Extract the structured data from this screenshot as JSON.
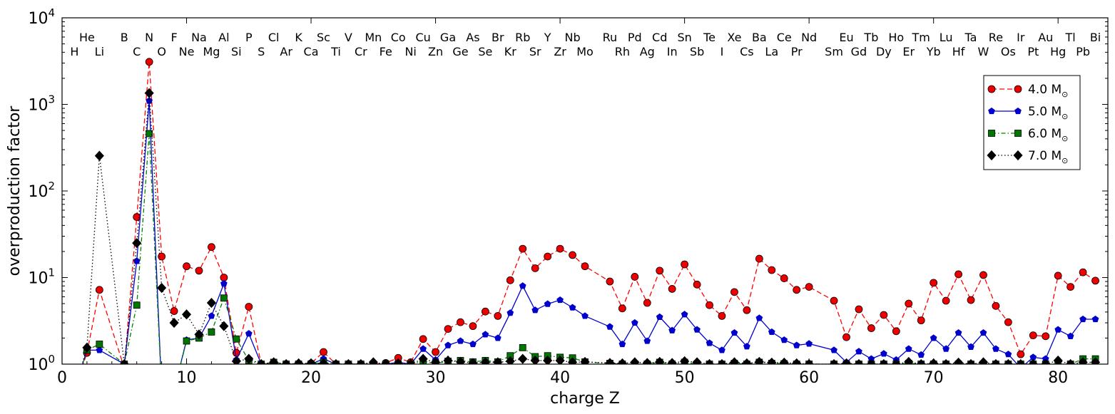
{
  "chart_data": {
    "type": "line",
    "xlabel": "charge Z",
    "ylabel": "overproduction factor",
    "xlim": [
      0,
      84
    ],
    "ylim": [
      1,
      10000
    ],
    "yscale": "log",
    "x_ticks": [
      0,
      10,
      20,
      30,
      40,
      50,
      60,
      70,
      80
    ],
    "y_ticks": [
      {
        "value": 1,
        "base": "10",
        "exp": "0"
      },
      {
        "value": 10,
        "base": "10",
        "exp": "1"
      },
      {
        "value": 100,
        "base": "10",
        "exp": "2"
      },
      {
        "value": 1000,
        "base": "10",
        "exp": "3"
      },
      {
        "value": 10000,
        "base": "10",
        "exp": "4"
      }
    ],
    "grid": false,
    "legend_position": "top-right",
    "element_labels": [
      {
        "z": 1,
        "s": "H"
      },
      {
        "z": 2,
        "s": "He"
      },
      {
        "z": 3,
        "s": "Li"
      },
      {
        "z": 5,
        "s": "B"
      },
      {
        "z": 6,
        "s": "C"
      },
      {
        "z": 7,
        "s": "N"
      },
      {
        "z": 8,
        "s": "O"
      },
      {
        "z": 9,
        "s": "F"
      },
      {
        "z": 10,
        "s": "Ne"
      },
      {
        "z": 11,
        "s": "Na"
      },
      {
        "z": 12,
        "s": "Mg"
      },
      {
        "z": 13,
        "s": "Al"
      },
      {
        "z": 14,
        "s": "Si"
      },
      {
        "z": 15,
        "s": "P"
      },
      {
        "z": 16,
        "s": "S"
      },
      {
        "z": 17,
        "s": "Cl"
      },
      {
        "z": 18,
        "s": "Ar"
      },
      {
        "z": 19,
        "s": "K"
      },
      {
        "z": 20,
        "s": "Ca"
      },
      {
        "z": 21,
        "s": "Sc"
      },
      {
        "z": 22,
        "s": "Ti"
      },
      {
        "z": 23,
        "s": "V"
      },
      {
        "z": 24,
        "s": "Cr"
      },
      {
        "z": 25,
        "s": "Mn"
      },
      {
        "z": 26,
        "s": "Fe"
      },
      {
        "z": 27,
        "s": "Co"
      },
      {
        "z": 28,
        "s": "Ni"
      },
      {
        "z": 29,
        "s": "Cu"
      },
      {
        "z": 30,
        "s": "Zn"
      },
      {
        "z": 31,
        "s": "Ga"
      },
      {
        "z": 32,
        "s": "Ge"
      },
      {
        "z": 33,
        "s": "As"
      },
      {
        "z": 34,
        "s": "Se"
      },
      {
        "z": 35,
        "s": "Br"
      },
      {
        "z": 36,
        "s": "Kr"
      },
      {
        "z": 37,
        "s": "Rb"
      },
      {
        "z": 38,
        "s": "Sr"
      },
      {
        "z": 39,
        "s": "Y"
      },
      {
        "z": 40,
        "s": "Zr"
      },
      {
        "z": 41,
        "s": "Nb"
      },
      {
        "z": 42,
        "s": "Mo"
      },
      {
        "z": 44,
        "s": "Ru"
      },
      {
        "z": 45,
        "s": "Rh"
      },
      {
        "z": 46,
        "s": "Pd"
      },
      {
        "z": 47,
        "s": "Ag"
      },
      {
        "z": 48,
        "s": "Cd"
      },
      {
        "z": 49,
        "s": "In"
      },
      {
        "z": 50,
        "s": "Sn"
      },
      {
        "z": 51,
        "s": "Sb"
      },
      {
        "z": 52,
        "s": "Te"
      },
      {
        "z": 53,
        "s": "I"
      },
      {
        "z": 54,
        "s": "Xe"
      },
      {
        "z": 55,
        "s": "Cs"
      },
      {
        "z": 56,
        "s": "Ba"
      },
      {
        "z": 57,
        "s": "La"
      },
      {
        "z": 58,
        "s": "Ce"
      },
      {
        "z": 59,
        "s": "Pr"
      },
      {
        "z": 60,
        "s": "Nd"
      },
      {
        "z": 62,
        "s": "Sm"
      },
      {
        "z": 63,
        "s": "Eu"
      },
      {
        "z": 64,
        "s": "Gd"
      },
      {
        "z": 65,
        "s": "Tb"
      },
      {
        "z": 66,
        "s": "Dy"
      },
      {
        "z": 67,
        "s": "Ho"
      },
      {
        "z": 68,
        "s": "Er"
      },
      {
        "z": 69,
        "s": "Tm"
      },
      {
        "z": 70,
        "s": "Yb"
      },
      {
        "z": 71,
        "s": "Lu"
      },
      {
        "z": 72,
        "s": "Hf"
      },
      {
        "z": 73,
        "s": "Ta"
      },
      {
        "z": 74,
        "s": "W"
      },
      {
        "z": 75,
        "s": "Re"
      },
      {
        "z": 76,
        "s": "Os"
      },
      {
        "z": 77,
        "s": "Ir"
      },
      {
        "z": 78,
        "s": "Pt"
      },
      {
        "z": 79,
        "s": "Au"
      },
      {
        "z": 80,
        "s": "Hg"
      },
      {
        "z": 81,
        "s": "Tl"
      },
      {
        "z": 82,
        "s": "Pb"
      },
      {
        "z": 83,
        "s": "Bi"
      }
    ],
    "series": [
      {
        "name": "4.0 M",
        "name_sub": "⊙",
        "color": "#ff0000",
        "marker": "circle",
        "marker_color": "#ee0000",
        "line_style": "dashed",
        "x": [
          1,
          2,
          3,
          5,
          6,
          7,
          8,
          9,
          10,
          11,
          12,
          13,
          14,
          15,
          16,
          17,
          18,
          19,
          20,
          21,
          22,
          23,
          24,
          25,
          26,
          27,
          28,
          29,
          30,
          31,
          32,
          33,
          34,
          35,
          36,
          37,
          38,
          39,
          40,
          41,
          42,
          44,
          45,
          46,
          47,
          48,
          49,
          50,
          51,
          52,
          53,
          54,
          55,
          56,
          57,
          58,
          59,
          60,
          62,
          63,
          64,
          65,
          66,
          67,
          68,
          69,
          70,
          71,
          72,
          73,
          74,
          75,
          76,
          77,
          78,
          79,
          80,
          81,
          82,
          83
        ],
        "y": [
          0.5,
          1.35,
          7.2,
          0.9,
          50,
          3100,
          17.5,
          4.1,
          13.5,
          12,
          22.5,
          10,
          1.35,
          4.6,
          1.0,
          1.02,
          1.0,
          1.01,
          1.02,
          1.38,
          1.0,
          1.0,
          1.0,
          1.0,
          1.03,
          1.18,
          1.05,
          1.95,
          1.38,
          2.55,
          3.05,
          2.75,
          4.05,
          3.6,
          9.3,
          21.5,
          12.8,
          17.5,
          21.5,
          18.2,
          13.5,
          9.0,
          4.4,
          10.2,
          5.1,
          12.0,
          7.4,
          14.2,
          8.3,
          4.8,
          3.6,
          6.8,
          4.2,
          16.5,
          12.2,
          9.8,
          7.2,
          7.8,
          5.4,
          2.05,
          4.3,
          2.6,
          3.7,
          2.4,
          5.0,
          3.2,
          8.7,
          5.4,
          10.9,
          5.5,
          10.7,
          4.7,
          3.05,
          1.3,
          2.15,
          2.1,
          10.5,
          7.8,
          11.5,
          9.2
        ]
      },
      {
        "name": "5.0 M",
        "name_sub": "⊙",
        "color": "#0000cc",
        "marker": "pentagon",
        "marker_color": "#0000cc",
        "line_style": "solid",
        "x": [
          1,
          2,
          3,
          5,
          6,
          7,
          8,
          9,
          10,
          11,
          12,
          13,
          14,
          15,
          16,
          17,
          18,
          19,
          20,
          21,
          22,
          23,
          24,
          25,
          26,
          27,
          28,
          29,
          30,
          31,
          32,
          33,
          34,
          35,
          36,
          37,
          38,
          39,
          40,
          41,
          42,
          44,
          45,
          46,
          47,
          48,
          49,
          50,
          51,
          52,
          53,
          54,
          55,
          56,
          57,
          58,
          59,
          60,
          62,
          63,
          64,
          65,
          66,
          67,
          68,
          69,
          70,
          71,
          72,
          73,
          74,
          75,
          76,
          77,
          78,
          79,
          80,
          81,
          82,
          83
        ],
        "y": [
          0.5,
          1.45,
          1.45,
          1.0,
          15.5,
          1100,
          0.5,
          0.5,
          1.9,
          2.0,
          3.6,
          8.5,
          1.12,
          2.25,
          1.0,
          1.0,
          1.0,
          1.0,
          1.0,
          1.15,
          1.0,
          1.0,
          1.0,
          1.0,
          1.0,
          1.05,
          1.0,
          1.5,
          1.12,
          1.65,
          1.85,
          1.7,
          2.2,
          2.0,
          3.9,
          8.0,
          4.2,
          4.95,
          5.5,
          4.5,
          3.6,
          2.7,
          1.7,
          3.0,
          1.85,
          3.5,
          2.45,
          3.75,
          2.5,
          1.75,
          1.45,
          2.3,
          1.6,
          3.4,
          2.35,
          1.9,
          1.65,
          1.72,
          1.45,
          1.05,
          1.4,
          1.15,
          1.32,
          1.12,
          1.5,
          1.28,
          2.0,
          1.5,
          2.3,
          1.58,
          2.3,
          1.5,
          1.3,
          0.9,
          1.2,
          1.15,
          2.5,
          2.1,
          3.3,
          3.3
        ]
      },
      {
        "name": "6.0 M",
        "name_sub": "⊙",
        "color": "#008000",
        "marker": "square",
        "marker_color": "#007700",
        "line_style": "dashdot",
        "x": [
          1,
          2,
          3,
          5,
          6,
          7,
          8,
          9,
          10,
          11,
          12,
          13,
          14,
          15,
          16,
          17,
          18,
          19,
          20,
          21,
          22,
          23,
          24,
          25,
          26,
          27,
          28,
          29,
          30,
          31,
          32,
          33,
          34,
          35,
          36,
          37,
          38,
          39,
          40,
          41,
          42,
          44,
          45,
          46,
          47,
          48,
          49,
          50,
          51,
          52,
          53,
          54,
          55,
          56,
          57,
          58,
          59,
          60,
          62,
          63,
          64,
          65,
          66,
          67,
          68,
          69,
          70,
          71,
          72,
          73,
          74,
          75,
          76,
          77,
          78,
          79,
          80,
          81,
          82,
          83
        ],
        "y": [
          0.5,
          1.45,
          1.7,
          1.0,
          4.8,
          460,
          0.5,
          0.5,
          1.85,
          2.0,
          2.35,
          5.8,
          1.95,
          1.1,
          1.0,
          1.05,
          1.0,
          1.0,
          1.0,
          1.05,
          1.0,
          1.0,
          1.0,
          1.0,
          1.0,
          1.0,
          1.0,
          1.08,
          1.02,
          1.08,
          1.1,
          1.06,
          1.1,
          1.06,
          1.25,
          1.55,
          1.22,
          1.25,
          1.2,
          1.18,
          1.06,
          1.02,
          1.0,
          1.0,
          1.0,
          1.05,
          1.0,
          1.05,
          1.0,
          1.0,
          1.0,
          1.02,
          1.0,
          1.05,
          1.02,
          1.01,
          1.0,
          1.0,
          1.0,
          1.0,
          1.0,
          1.0,
          1.0,
          1.0,
          1.02,
          1.0,
          1.0,
          1.0,
          1.0,
          1.0,
          1.0,
          1.0,
          1.0,
          1.0,
          1.0,
          1.0,
          1.0,
          1.0,
          1.15,
          1.15
        ]
      },
      {
        "name": "7.0 M",
        "name_sub": "⊙",
        "color": "#000000",
        "marker": "diamond",
        "marker_color": "#000000",
        "line_style": "dotted",
        "x": [
          1,
          2,
          3,
          5,
          6,
          7,
          8,
          9,
          10,
          11,
          12,
          13,
          14,
          15,
          16,
          17,
          18,
          19,
          20,
          21,
          22,
          23,
          24,
          25,
          26,
          27,
          28,
          29,
          30,
          31,
          32,
          33,
          34,
          35,
          36,
          37,
          38,
          39,
          40,
          41,
          42,
          44,
          45,
          46,
          47,
          48,
          49,
          50,
          51,
          52,
          53,
          54,
          55,
          56,
          57,
          58,
          59,
          60,
          62,
          63,
          64,
          65,
          66,
          67,
          68,
          69,
          70,
          71,
          72,
          73,
          74,
          75,
          76,
          77,
          78,
          79,
          80,
          81,
          82,
          83
        ],
        "y": [
          0.5,
          1.55,
          255,
          1.0,
          25,
          1350,
          7.6,
          3.0,
          3.75,
          2.2,
          5.1,
          2.75,
          1.08,
          1.15,
          1.0,
          1.05,
          1.0,
          1.02,
          1.02,
          1.02,
          1.0,
          1.0,
          1.0,
          1.05,
          1.0,
          1.02,
          1.0,
          1.15,
          1.05,
          1.1,
          1.06,
          1.03,
          1.05,
          1.05,
          1.08,
          1.15,
          1.1,
          1.1,
          1.1,
          1.05,
          1.06,
          1.03,
          1.02,
          1.05,
          1.03,
          1.06,
          1.03,
          1.08,
          1.05,
          1.0,
          1.0,
          1.05,
          1.02,
          1.06,
          1.04,
          1.04,
          1.02,
          1.0,
          1.0,
          1.02,
          1.0,
          1.0,
          1.0,
          1.0,
          1.06,
          1.0,
          1.02,
          1.0,
          1.04,
          1.0,
          1.05,
          1.0,
          1.0,
          1.0,
          1.0,
          1.0,
          1.1,
          1.0,
          1.05,
          1.05
        ]
      }
    ]
  }
}
